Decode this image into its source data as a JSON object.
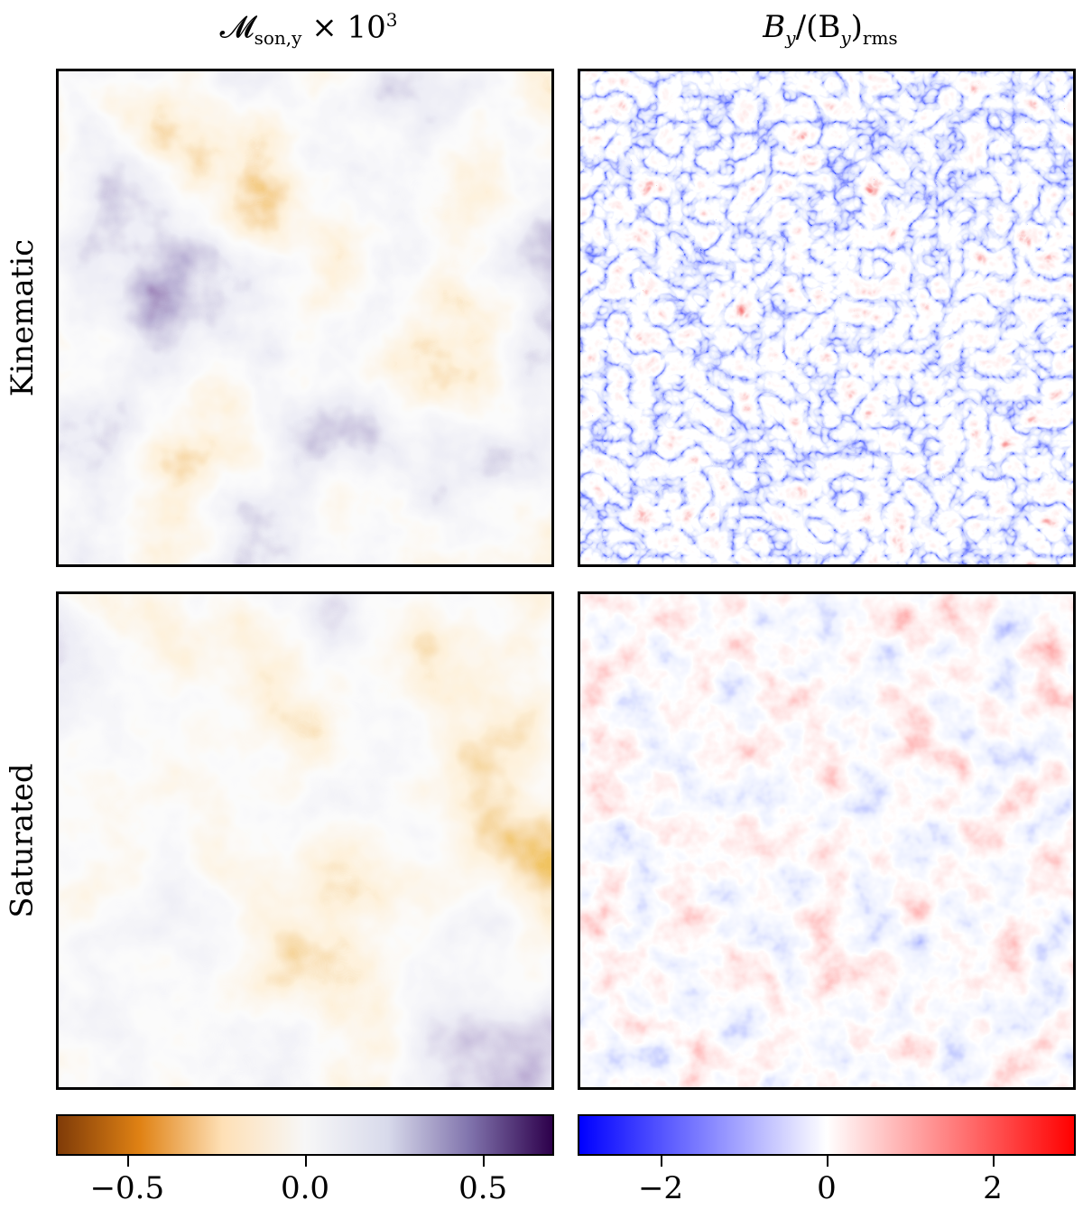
{
  "columns": [
    {
      "title_main": "𝓜",
      "title_sub": "son,y",
      "title_tail": " × 10",
      "title_sup": "3"
    },
    {
      "title_main": "B",
      "title_sub_y": "y",
      "title_mid": "/(B",
      "title_sub_y2": "y",
      "title_paren": ")",
      "title_sub_rms": "rms"
    }
  ],
  "rows": [
    {
      "label": "Kinematic"
    },
    {
      "label": "Saturated"
    }
  ],
  "colorbars": [
    {
      "name": "mach-colorbar",
      "cmap": "PuOr",
      "range": [
        -0.7,
        0.7
      ],
      "ticks": [
        "−0.5",
        "0.0",
        "0.5"
      ],
      "tick_values": [
        -0.5,
        0.0,
        0.5
      ],
      "colors": [
        "#7f3b08",
        "#e08214",
        "#fee0b6",
        "#f7f7f7",
        "#d8daeb",
        "#8073ac",
        "#2d004b"
      ]
    },
    {
      "name": "field-colorbar",
      "cmap": "bwr",
      "range": [
        -3,
        3
      ],
      "ticks": [
        "−2",
        "0",
        "2"
      ],
      "tick_values": [
        -2,
        0,
        2
      ],
      "colors": [
        "#0000ff",
        "#ffffff",
        "#ff0000"
      ]
    }
  ]
}
